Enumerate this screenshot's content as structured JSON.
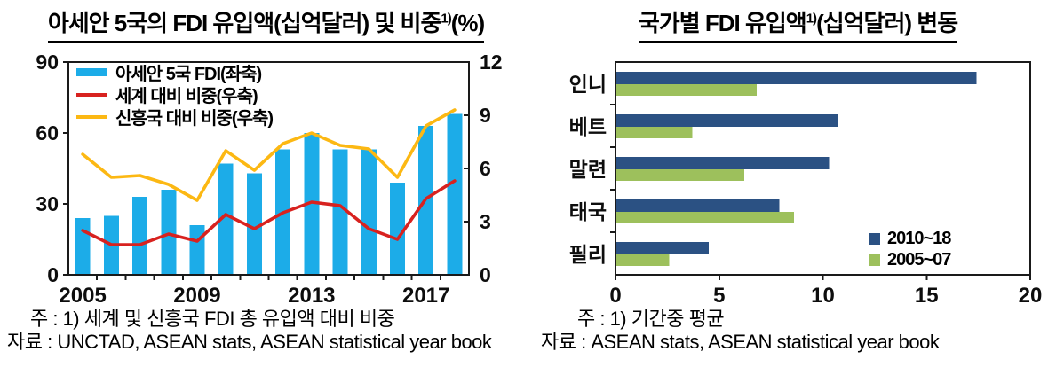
{
  "left_panel": {
    "title": {
      "text": "아세안 5국의 FDI 유입액(십억달러) 및 비중",
      "sup": "1)",
      "suffix": "(%)"
    },
    "notes": [
      "주 : 1) 세계 및 신흥국 FDI 총 유입액 대비 비중",
      "자료 : UNCTAD, ASEAN stats, ASEAN statistical year book"
    ]
  },
  "right_panel": {
    "title": {
      "text": "국가별 FDI 유입액",
      "sup": "1)",
      "suffix": "(십억달러) 변동"
    },
    "notes": [
      "주 : 1) 기간중 평균",
      "자료 : ASEAN stats, ASEAN statistical year book"
    ]
  },
  "chart_data": [
    {
      "type": "bar",
      "subtype": "combo-bar-line",
      "title": "아세안 5국의 FDI 유입액(십억달러) 및 비중(%)",
      "x": [
        2005,
        2006,
        2007,
        2008,
        2009,
        2010,
        2011,
        2012,
        2013,
        2014,
        2015,
        2016,
        2017,
        2018
      ],
      "x_tick_indices": [
        0,
        4,
        8,
        12
      ],
      "x_tick_labels": [
        "2005",
        "2009",
        "2013",
        "2017"
      ],
      "left_axis": {
        "min": 0,
        "max": 90,
        "ticks": [
          0,
          30,
          60,
          90
        ]
      },
      "right_axis": {
        "min": 0,
        "max": 12,
        "ticks": [
          0,
          3,
          6,
          9,
          12
        ]
      },
      "grid": false,
      "legend_position": "top-left",
      "series": [
        {
          "name": "아세안 5국 FDI(좌축)",
          "type": "bar",
          "axis": "left",
          "color": "#1CACE8",
          "values": [
            24,
            25,
            33,
            36,
            21,
            47,
            43,
            53,
            60,
            53,
            53,
            39,
            63,
            68
          ]
        },
        {
          "name": "세계 대비 비중(우축)",
          "type": "line",
          "axis": "right",
          "color": "#D8221F",
          "values": [
            2.5,
            1.7,
            1.7,
            2.3,
            1.9,
            3.4,
            2.6,
            3.5,
            4.1,
            3.9,
            2.6,
            2.0,
            4.3,
            5.3
          ]
        },
        {
          "name": "신흥국 대비 비중(우축)",
          "type": "line",
          "axis": "right",
          "color": "#FCB813",
          "values": [
            6.8,
            5.5,
            5.6,
            5.1,
            4.2,
            7.0,
            5.9,
            7.4,
            8.0,
            7.3,
            7.1,
            5.5,
            8.4,
            9.3
          ]
        }
      ]
    },
    {
      "type": "bar",
      "subtype": "horizontal-grouped",
      "title": "국가별 FDI 유입액(십억달러) 변동",
      "categories": [
        "인니",
        "베트",
        "말련",
        "태국",
        "필리"
      ],
      "x_axis": {
        "min": 0,
        "max": 20,
        "ticks": [
          0,
          5,
          10,
          15,
          20
        ]
      },
      "grid": false,
      "legend_position": "bottom-right",
      "series": [
        {
          "name": "2010~18",
          "color": "#2B5183",
          "values": [
            17.4,
            10.7,
            10.3,
            7.9,
            4.5
          ]
        },
        {
          "name": "2005~07",
          "color": "#9DC05C",
          "values": [
            6.8,
            3.7,
            6.2,
            8.6,
            2.6
          ]
        }
      ]
    }
  ]
}
